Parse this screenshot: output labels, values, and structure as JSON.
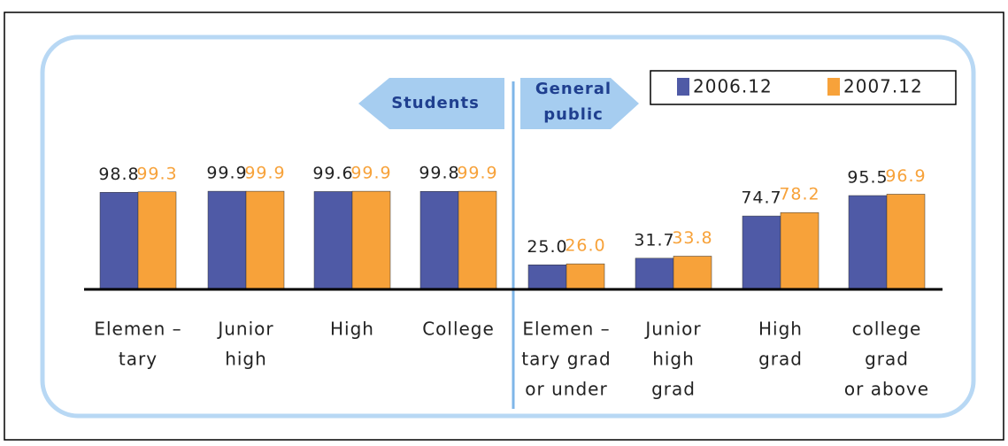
{
  "chart_data": {
    "type": "bar",
    "groups": [
      {
        "label": "Students"
      },
      {
        "label": [
          "General",
          "public"
        ]
      }
    ],
    "categories": [
      [
        "Elemen –",
        "tary"
      ],
      [
        "Junior",
        "high"
      ],
      [
        "High"
      ],
      [
        "College"
      ],
      [
        "Elemen –",
        "tary grad",
        "or under"
      ],
      [
        "Junior",
        "high",
        "grad"
      ],
      [
        "High",
        "grad"
      ],
      [
        "college",
        "grad",
        "or above"
      ]
    ],
    "series": [
      {
        "name": "2006.12",
        "color": "#4f5aa6",
        "values": [
          98.8,
          99.9,
          99.6,
          99.8,
          25.0,
          31.7,
          74.7,
          95.5
        ],
        "value_labels": [
          "98.8",
          "99.9",
          "99.6",
          "99.8",
          "25.0",
          "31.7",
          "74.7",
          "95.5"
        ]
      },
      {
        "name": "2007.12",
        "color": "#f7a23a",
        "values": [
          99.3,
          99.9,
          99.9,
          99.9,
          26.0,
          33.8,
          78.2,
          96.9
        ],
        "value_labels": [
          "99.3",
          "99.9",
          "99.9",
          "99.9",
          "26.0",
          "33.8",
          "78.2",
          "96.9"
        ]
      }
    ],
    "ylim": [
      0,
      100
    ]
  }
}
